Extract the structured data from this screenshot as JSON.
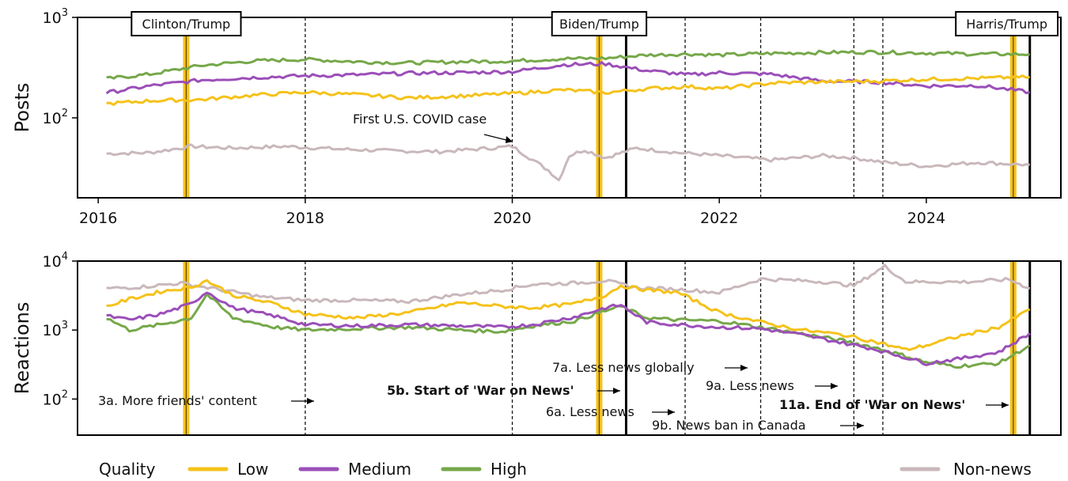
{
  "chart_data": [
    {
      "type": "line",
      "ylabel": "Posts",
      "yscale": "log",
      "ylim": [
        16,
        1000
      ],
      "yticks": [
        {
          "value": 100,
          "base": "10",
          "exp": "2"
        },
        {
          "value": 1000,
          "base": "10",
          "exp": "3"
        }
      ],
      "xlim": [
        2015.8,
        2025.3
      ],
      "xticks": [
        "2016",
        "2018",
        "2020",
        "2022",
        "2024"
      ],
      "series": [
        {
          "name": "Low",
          "color": "#f5c21b",
          "x": [
            2016.08,
            2016.5,
            2017.0,
            2017.5,
            2018.0,
            2018.5,
            2019.0,
            2019.5,
            2020.0,
            2020.5,
            2020.9,
            2021.3,
            2021.7,
            2022.0,
            2022.5,
            2023.0,
            2023.5,
            2024.0,
            2024.5,
            2025.0
          ],
          "values": [
            138,
            148,
            152,
            168,
            180,
            170,
            158,
            165,
            175,
            190,
            178,
            195,
            205,
            195,
            222,
            228,
            232,
            242,
            248,
            255
          ]
        },
        {
          "name": "Medium",
          "color": "#9b4fb8",
          "x": [
            2016.08,
            2016.5,
            2017.0,
            2017.5,
            2018.0,
            2018.5,
            2019.0,
            2019.5,
            2020.0,
            2020.5,
            2020.9,
            2021.3,
            2021.7,
            2022.0,
            2022.5,
            2023.0,
            2023.5,
            2024.0,
            2024.5,
            2025.0
          ],
          "values": [
            178,
            208,
            238,
            252,
            262,
            268,
            278,
            282,
            288,
            338,
            345,
            295,
            268,
            282,
            272,
            232,
            228,
            208,
            210,
            180
          ]
        },
        {
          "name": "High",
          "color": "#76a84a",
          "x": [
            2016.08,
            2016.5,
            2017.0,
            2017.5,
            2018.0,
            2018.5,
            2019.0,
            2019.5,
            2020.0,
            2020.5,
            2020.9,
            2021.3,
            2021.7,
            2022.0,
            2022.5,
            2023.0,
            2023.5,
            2024.0,
            2024.5,
            2025.0
          ],
          "values": [
            245,
            272,
            332,
            368,
            382,
            362,
            352,
            362,
            368,
            388,
            392,
            422,
            432,
            422,
            438,
            448,
            452,
            442,
            432,
            430
          ]
        },
        {
          "name": "Non-news",
          "color": "#c9b8bb",
          "x": [
            2016.08,
            2016.5,
            2016.9,
            2017.3,
            2017.8,
            2018.3,
            2018.8,
            2019.3,
            2019.8,
            2020.0,
            2020.2,
            2020.35,
            2020.45,
            2020.55,
            2020.7,
            2020.9,
            2021.2,
            2021.6,
            2022.0,
            2022.5,
            2023.0,
            2023.3,
            2023.6,
            2024.0,
            2024.5,
            2025.0
          ],
          "values": [
            44,
            45,
            52,
            50,
            52,
            49,
            47,
            46,
            50,
            52,
            38,
            30,
            24,
            42,
            48,
            40,
            50,
            45,
            42,
            38,
            42,
            40,
            36,
            33,
            36,
            34
          ]
        }
      ],
      "elections": [
        {
          "x": 2016.85,
          "label": "Clinton/Trump"
        },
        {
          "x": 2020.84,
          "label": "Biden/Trump"
        },
        {
          "x": 2024.84,
          "label": "Harris/Trump"
        }
      ],
      "dashed_events_x": [
        2018.0,
        2020.0,
        2021.67,
        2022.4,
        2023.3,
        2023.58
      ],
      "solid_events_x": [
        2021.1,
        2025.0
      ],
      "annotations": [
        {
          "text": "First U.S. COVID case",
          "x": 2020.0,
          "y": 60
        }
      ]
    },
    {
      "type": "line",
      "ylabel": "Reactions",
      "yscale": "log",
      "ylim": [
        30,
        10000
      ],
      "yticks": [
        {
          "value": 100,
          "base": "10",
          "exp": "2"
        },
        {
          "value": 1000,
          "base": "10",
          "exp": "3"
        },
        {
          "value": 10000,
          "base": "10",
          "exp": "4"
        }
      ],
      "xlim": [
        2015.8,
        2025.3
      ],
      "series": [
        {
          "name": "Low",
          "color": "#f5c21b",
          "x": [
            2016.08,
            2016.3,
            2016.6,
            2016.9,
            2017.05,
            2017.3,
            2017.7,
            2018.0,
            2018.5,
            2019.0,
            2019.5,
            2019.9,
            2020.2,
            2020.6,
            2020.9,
            2021.05,
            2021.3,
            2021.6,
            2022.0,
            2022.4,
            2022.8,
            2023.2,
            2023.5,
            2023.8,
            2024.0,
            2024.3,
            2024.7,
            2025.0
          ],
          "values": [
            2200,
            2800,
            3600,
            4200,
            5200,
            3200,
            2400,
            1700,
            1500,
            1800,
            2500,
            2200,
            2100,
            2400,
            3200,
            4400,
            3800,
            3500,
            1800,
            1300,
            1000,
            850,
            680,
            520,
            600,
            800,
            1100,
            2000
          ]
        },
        {
          "name": "Medium",
          "color": "#9b4fb8",
          "x": [
            2016.08,
            2016.3,
            2016.6,
            2016.9,
            2017.05,
            2017.3,
            2017.7,
            2018.0,
            2018.5,
            2019.0,
            2019.5,
            2019.9,
            2020.2,
            2020.6,
            2020.9,
            2021.05,
            2021.3,
            2021.6,
            2022.0,
            2022.4,
            2022.8,
            2023.2,
            2023.5,
            2023.8,
            2024.0,
            2024.3,
            2024.7,
            2025.0
          ],
          "values": [
            1600,
            1400,
            1700,
            2400,
            3600,
            2100,
            1600,
            1200,
            1150,
            1200,
            1150,
            1100,
            1200,
            1550,
            2100,
            2300,
            1300,
            1200,
            1100,
            1050,
            850,
            650,
            530,
            400,
            330,
            380,
            480,
            900
          ]
        },
        {
          "name": "High",
          "color": "#76a84a",
          "x": [
            2016.08,
            2016.3,
            2016.6,
            2016.9,
            2017.05,
            2017.3,
            2017.7,
            2018.0,
            2018.5,
            2019.0,
            2019.5,
            2019.9,
            2020.2,
            2020.6,
            2020.9,
            2021.05,
            2021.3,
            2021.6,
            2022.0,
            2022.4,
            2022.8,
            2023.2,
            2023.5,
            2023.8,
            2024.0,
            2024.3,
            2024.7,
            2025.0
          ],
          "values": [
            1500,
            1000,
            1200,
            1500,
            3300,
            1500,
            1100,
            1000,
            1050,
            1100,
            1000,
            950,
            1150,
            1350,
            1900,
            2200,
            1500,
            1400,
            1350,
            1100,
            880,
            700,
            560,
            420,
            340,
            300,
            330,
            600
          ]
        },
        {
          "name": "Non-news",
          "color": "#c9b8bb",
          "x": [
            2016.08,
            2016.4,
            2016.8,
            2017.2,
            2017.6,
            2018.0,
            2018.5,
            2019.0,
            2019.5,
            2019.9,
            2020.2,
            2020.6,
            2020.9,
            2021.2,
            2021.6,
            2022.0,
            2022.4,
            2022.8,
            2023.0,
            2023.3,
            2023.6,
            2023.8,
            2024.0,
            2024.4,
            2024.8,
            2025.0
          ],
          "values": [
            4000,
            4200,
            4800,
            3800,
            3000,
            2700,
            2700,
            2600,
            3300,
            3800,
            4600,
            4800,
            5200,
            4100,
            3900,
            3500,
            5500,
            5200,
            5000,
            4400,
            8400,
            5000,
            5000,
            5000,
            5400,
            4000
          ]
        }
      ],
      "elections_x": [
        2016.85,
        2020.84,
        2024.84
      ],
      "dashed_events_x": [
        2018.0,
        2020.0,
        2021.67,
        2022.4,
        2023.3,
        2023.58
      ],
      "solid_events_x": [
        2021.1,
        2025.0
      ],
      "annotations": [
        {
          "text": "3a. More friends' content",
          "bold": false
        },
        {
          "text": "5b. Start of 'War on News'",
          "bold": true
        },
        {
          "text": "6a. Less news",
          "bold": false
        },
        {
          "text": "7a. Less news globally",
          "bold": false
        },
        {
          "text": "9a. Less news",
          "bold": false
        },
        {
          "text": "9b. News ban in Canada",
          "bold": false
        },
        {
          "text": "11a. End of 'War on News'",
          "bold": true
        }
      ]
    }
  ],
  "legend": {
    "title": "Quality",
    "items": [
      {
        "label": "Low",
        "color": "#f5c21b"
      },
      {
        "label": "Medium",
        "color": "#9b4fb8"
      },
      {
        "label": "High",
        "color": "#76a84a"
      },
      {
        "label": "Non-news",
        "color": "#c9b8bb"
      }
    ]
  }
}
